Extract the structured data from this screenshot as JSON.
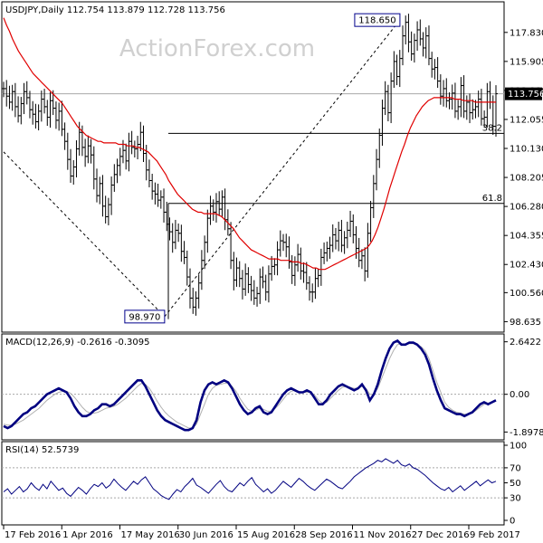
{
  "watermark": "ActionForex.com",
  "chart_data": [
    {
      "type": "candlestick",
      "title": "USDJPY,Daily  112.754 113.879 112.728 113.756",
      "ylim": [
        98.0,
        119.8
      ],
      "yticks": [
        "117.830",
        "115.905",
        "113.980",
        "112.055",
        "110.130",
        "108.205",
        "106.280",
        "104.355",
        "102.430",
        "100.560",
        "98.635"
      ],
      "ytick_values": [
        117.83,
        115.905,
        113.98,
        112.055,
        110.13,
        108.205,
        106.28,
        104.355,
        102.43,
        100.56,
        98.635
      ],
      "last_price": "113.756",
      "last_price_value": 113.756,
      "annotations": [
        {
          "label": "118.650",
          "x": 0.805,
          "y": 118.65
        },
        {
          "label": "98.970",
          "x": 0.327,
          "y": 98.97
        }
      ],
      "fib_levels": [
        {
          "label": "38.2",
          "value": 111.13
        },
        {
          "label": "61.8",
          "value": 106.48
        }
      ],
      "bars": [
        114.1,
        113.6,
        113.2,
        113.9,
        112.9,
        112.3,
        113.1,
        113.9,
        113.5,
        112.7,
        112.4,
        111.9,
        112.6,
        113.4,
        112.9,
        112.2,
        113.3,
        112.8,
        112.0,
        112.6,
        111.4,
        110.6,
        109.4,
        108.3,
        108.9,
        110.1,
        111.2,
        110.2,
        109.6,
        110.3,
        109.7,
        108.1,
        107.0,
        107.8,
        106.3,
        105.6,
        106.4,
        107.7,
        108.4,
        109.0,
        109.6,
        110.0,
        109.3,
        110.6,
        110.2,
        110.1,
        110.4,
        111.2,
        109.8,
        108.7,
        108.0,
        107.3,
        107.1,
        106.7,
        106.9,
        105.9,
        105.1,
        104.6,
        103.9,
        104.7,
        104.5,
        103.3,
        102.9,
        101.6,
        100.2,
        99.6,
        100.2,
        101.2,
        102.7,
        103.9,
        105.5,
        106.3,
        105.9,
        106.6,
        106.1,
        106.9,
        105.4,
        104.8,
        102.7,
        101.4,
        102.2,
        101.5,
        100.8,
        101.8,
        101.1,
        100.7,
        100.2,
        100.5,
        101.6,
        101.3,
        100.6,
        101.8,
        102.3,
        102.4,
        103.4,
        104.0,
        103.9,
        103.6,
        102.6,
        101.7,
        102.4,
        103.1,
        102.0,
        101.9,
        101.2,
        100.6,
        100.6,
        101.5,
        101.7,
        102.9,
        103.2,
        103.5,
        103.7,
        104.4,
        104.0,
        104.7,
        103.7,
        104.2,
        104.7,
        105.3,
        104.4,
        103.5,
        102.7,
        103.0,
        102.0,
        104.5,
        106.2,
        107.8,
        109.4,
        111.0,
        112.8,
        113.9,
        112.5,
        114.6,
        115.9,
        114.9,
        116.1,
        117.6,
        118.5,
        117.2,
        116.4,
        117.3,
        118.0,
        117.4,
        116.8,
        117.6,
        116.1,
        115.4,
        115.5,
        114.6,
        113.6,
        114.1,
        113.3,
        113.4,
        113.8,
        112.6,
        112.9,
        114.3,
        112.6,
        113.2,
        112.5,
        112.7,
        112.9,
        113.4,
        112.1,
        112.2,
        113.9,
        113.2,
        111.6,
        113.76
      ],
      "ma": [
        118.8,
        118.3,
        117.9,
        117.4,
        117.0,
        116.6,
        116.3,
        116.0,
        115.7,
        115.4,
        115.1,
        114.9,
        114.7,
        114.5,
        114.3,
        114.1,
        113.9,
        113.7,
        113.5,
        113.3,
        113.1,
        112.8,
        112.5,
        112.2,
        111.9,
        111.6,
        111.4,
        111.2,
        111.0,
        110.9,
        110.8,
        110.7,
        110.6,
        110.6,
        110.5,
        110.5,
        110.5,
        110.5,
        110.5,
        110.4,
        110.4,
        110.4,
        110.3,
        110.3,
        110.3,
        110.2,
        110.2,
        110.1,
        110.0,
        109.9,
        109.7,
        109.5,
        109.3,
        109.0,
        108.7,
        108.4,
        108.0,
        107.7,
        107.4,
        107.1,
        106.9,
        106.7,
        106.5,
        106.3,
        106.1,
        106.0,
        105.9,
        105.9,
        105.8,
        105.8,
        105.8,
        105.8,
        105.8,
        105.7,
        105.6,
        105.4,
        105.2,
        105.0,
        104.8,
        104.5,
        104.2,
        104.0,
        103.8,
        103.6,
        103.4,
        103.3,
        103.2,
        103.1,
        103.0,
        102.9,
        102.8,
        102.8,
        102.8,
        102.8,
        102.7,
        102.7,
        102.7,
        102.7,
        102.6,
        102.6,
        102.6,
        102.5,
        102.5,
        102.4,
        102.3,
        102.2,
        102.2,
        102.1,
        102.1,
        102.1,
        102.2,
        102.3,
        102.4,
        102.5,
        102.6,
        102.7,
        102.8,
        102.9,
        103.0,
        103.1,
        103.2,
        103.3,
        103.4,
        103.5,
        103.7,
        104.0,
        104.4,
        104.9,
        105.5,
        106.1,
        106.8,
        107.5,
        108.1,
        108.7,
        109.3,
        109.9,
        110.4,
        111.0,
        111.5,
        111.9,
        112.3,
        112.6,
        112.9,
        113.1,
        113.3,
        113.4,
        113.5,
        113.5,
        113.5,
        113.5,
        113.5,
        113.5,
        113.5,
        113.4,
        113.4,
        113.4,
        113.3,
        113.3,
        113.3,
        113.3,
        113.2,
        113.2,
        113.2,
        113.2,
        113.2,
        113.2,
        113.2,
        113.2
      ]
    },
    {
      "type": "line",
      "title": "MACD(12,26,9) -0.2616 -0.3095",
      "ylim": [
        -2.2,
        2.9
      ],
      "yticks": [
        "2.6422",
        "0.00",
        "-1.8978"
      ],
      "ytick_values": [
        2.6422,
        0.0,
        -1.8978
      ],
      "macd": [
        -1.6,
        -1.7,
        -1.6,
        -1.4,
        -1.2,
        -1.0,
        -0.9,
        -0.7,
        -0.6,
        -0.4,
        -0.2,
        0.0,
        0.1,
        0.2,
        0.3,
        0.2,
        0.1,
        -0.2,
        -0.6,
        -0.9,
        -1.1,
        -1.1,
        -1.0,
        -0.8,
        -0.7,
        -0.5,
        -0.5,
        -0.6,
        -0.5,
        -0.3,
        -0.1,
        0.1,
        0.3,
        0.5,
        0.7,
        0.7,
        0.4,
        0.0,
        -0.4,
        -0.8,
        -1.1,
        -1.3,
        -1.4,
        -1.5,
        -1.6,
        -1.7,
        -1.8,
        -1.8,
        -1.7,
        -1.3,
        -0.4,
        0.2,
        0.5,
        0.6,
        0.5,
        0.6,
        0.7,
        0.6,
        0.3,
        -0.1,
        -0.5,
        -0.8,
        -1.0,
        -0.9,
        -0.7,
        -0.6,
        -0.9,
        -1.0,
        -0.9,
        -0.6,
        -0.3,
        0.0,
        0.2,
        0.3,
        0.2,
        0.1,
        0.1,
        0.2,
        0.1,
        -0.2,
        -0.5,
        -0.5,
        -0.3,
        0.0,
        0.2,
        0.4,
        0.5,
        0.4,
        0.3,
        0.2,
        0.3,
        0.5,
        0.2,
        -0.3,
        0.0,
        0.5,
        1.2,
        1.8,
        2.3,
        2.6,
        2.7,
        2.5,
        2.5,
        2.6,
        2.6,
        2.5,
        2.3,
        2.0,
        1.5,
        0.8,
        0.2,
        -0.3,
        -0.7,
        -0.8,
        -0.9,
        -1.0,
        -1.0,
        -1.1,
        -1.0,
        -0.9,
        -0.7,
        -0.5,
        -0.4,
        -0.5,
        -0.4,
        -0.3
      ],
      "signal": [
        -1.5,
        -1.55,
        -1.55,
        -1.5,
        -1.4,
        -1.3,
        -1.15,
        -1.0,
        -0.85,
        -0.7,
        -0.5,
        -0.3,
        -0.15,
        0.0,
        0.1,
        0.15,
        0.15,
        0.05,
        -0.15,
        -0.4,
        -0.65,
        -0.85,
        -0.95,
        -0.95,
        -0.9,
        -0.8,
        -0.7,
        -0.65,
        -0.6,
        -0.5,
        -0.35,
        -0.2,
        0.0,
        0.2,
        0.4,
        0.55,
        0.5,
        0.3,
        0.0,
        -0.35,
        -0.65,
        -0.9,
        -1.1,
        -1.25,
        -1.4,
        -1.5,
        -1.6,
        -1.7,
        -1.7,
        -1.5,
        -1.0,
        -0.5,
        0.0,
        0.3,
        0.45,
        0.5,
        0.55,
        0.55,
        0.4,
        0.15,
        -0.2,
        -0.5,
        -0.75,
        -0.85,
        -0.8,
        -0.7,
        -0.75,
        -0.85,
        -0.85,
        -0.7,
        -0.5,
        -0.25,
        0.0,
        0.15,
        0.2,
        0.15,
        0.1,
        0.1,
        0.1,
        -0.05,
        -0.3,
        -0.45,
        -0.4,
        -0.2,
        0.0,
        0.2,
        0.35,
        0.4,
        0.35,
        0.3,
        0.3,
        0.4,
        0.3,
        0.0,
        0.0,
        0.3,
        0.8,
        1.3,
        1.8,
        2.2,
        2.5,
        2.55,
        2.5,
        2.55,
        2.55,
        2.5,
        2.4,
        2.2,
        1.8,
        1.2,
        0.6,
        0.1,
        -0.4,
        -0.65,
        -0.8,
        -0.9,
        -0.95,
        -1.0,
        -1.0,
        -0.95,
        -0.8,
        -0.65,
        -0.5,
        -0.45,
        -0.4,
        -0.35
      ]
    },
    {
      "type": "line",
      "title": "RSI(14) 52.5739",
      "ylim": [
        0,
        100
      ],
      "yticks": [
        "100",
        "70",
        "50",
        "30",
        "0"
      ],
      "ytick_values": [
        100,
        70,
        50,
        30,
        0
      ],
      "values": [
        38,
        42,
        35,
        40,
        45,
        38,
        42,
        50,
        44,
        40,
        48,
        42,
        52,
        46,
        40,
        43,
        36,
        32,
        38,
        44,
        40,
        35,
        42,
        48,
        45,
        50,
        43,
        47,
        55,
        49,
        44,
        40,
        46,
        52,
        48,
        54,
        58,
        50,
        42,
        38,
        33,
        30,
        28,
        35,
        41,
        38,
        45,
        50,
        56,
        47,
        44,
        40,
        36,
        42,
        48,
        53,
        45,
        40,
        38,
        44,
        50,
        46,
        52,
        57,
        48,
        43,
        38,
        42,
        36,
        40,
        46,
        52,
        48,
        44,
        50,
        56,
        52,
        47,
        43,
        40,
        45,
        50,
        55,
        52,
        48,
        44,
        42,
        47,
        52,
        58,
        62,
        66,
        70,
        73,
        76,
        80,
        78,
        82,
        79,
        76,
        80,
        74,
        72,
        75,
        70,
        68,
        64,
        60,
        55,
        50,
        46,
        42,
        40,
        44,
        38,
        42,
        46,
        40,
        44,
        48,
        52,
        46,
        50,
        54,
        50,
        52
      ],
      "x_labels": [
        "17 Feb 2016",
        "1 Apr 2016",
        "17 May 2016",
        "30 Jun 2016",
        "15 Aug 2016",
        "28 Sep 2016",
        "11 Nov 2016",
        "27 Dec 2016",
        "9 Feb 2017"
      ]
    }
  ]
}
